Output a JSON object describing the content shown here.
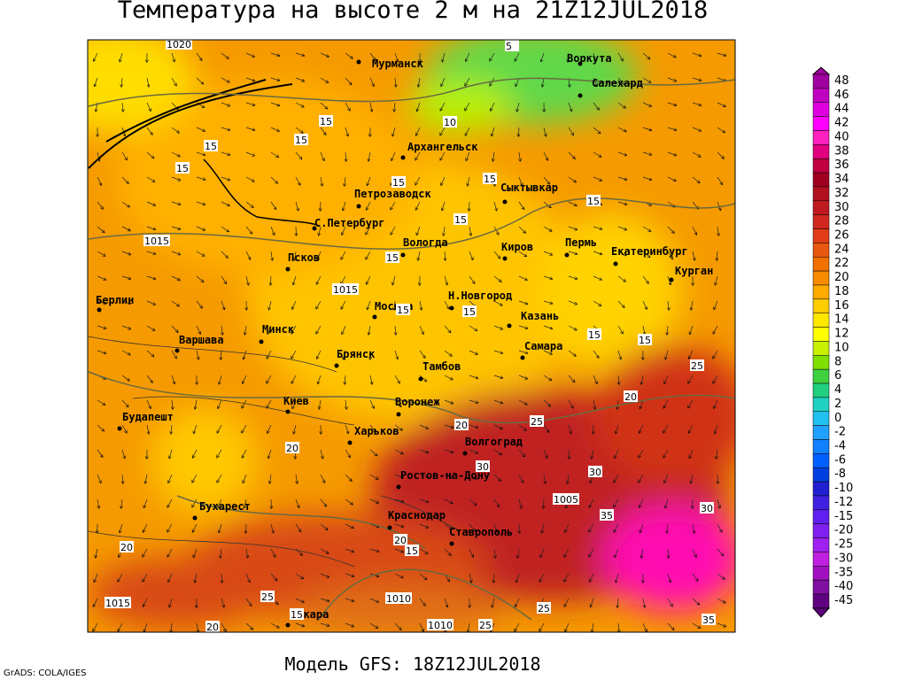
{
  "title": "Температура на высоте 2 м на 21Z12JUL2018",
  "subtitle": "Модель GFS: 18Z12JUL2018",
  "credit": "GrADS: COLA/IGES",
  "cities": [
    "Мурманск",
    "Воркута",
    "Салехард",
    "Архангельск",
    "Петрозаводск",
    "Сыктывкар",
    "С.Петербург",
    "Вологда",
    "Киров",
    "Пермь",
    "Екатеринбург",
    "Курган",
    "Псков",
    "Берлин",
    "Н.Новгород",
    "Москва",
    "Казань",
    "Варшава",
    "Минск",
    "Самара",
    "Брянск",
    "Тамбов",
    "Киев",
    "Воронеж",
    "Будапешт",
    "Харьков",
    "Волгоград",
    "Ростов-на-Дону",
    "Бухарест",
    "Краснодар",
    "Ставрополь",
    "Анкара"
  ],
  "isolines": [
    "1020",
    "5",
    "10",
    "15",
    "15",
    "15",
    "15",
    "15",
    "15",
    "15",
    "1015",
    "1015",
    "15",
    "15",
    "15",
    "15",
    "15",
    "15",
    "25",
    "20",
    "20",
    "20",
    "25",
    "30",
    "30",
    "1005",
    "35",
    "30",
    "25",
    "20",
    "15",
    "1010",
    "1010",
    "25",
    "25",
    "35",
    "1015",
    "20",
    "15",
    "20"
  ],
  "legend": {
    "labels": [
      "48",
      "46",
      "44",
      "42",
      "40",
      "38",
      "36",
      "34",
      "32",
      "30",
      "28",
      "26",
      "24",
      "22",
      "20",
      "18",
      "16",
      "14",
      "12",
      "10",
      "8",
      "6",
      "4",
      "2",
      "0",
      "-2",
      "-4",
      "-6",
      "-8",
      "-10",
      "-12",
      "-15",
      "-20",
      "-25",
      "-30",
      "-35",
      "-40",
      "-45"
    ],
    "colors": [
      "#a000a0",
      "#c000c0",
      "#e000e0",
      "#ff00ff",
      "#ff20c0",
      "#e00080",
      "#c00040",
      "#a00020",
      "#b01020",
      "#c01a20",
      "#d02820",
      "#e03c18",
      "#e85810",
      "#f07000",
      "#f88c00",
      "#ffaa00",
      "#ffcc00",
      "#ffe800",
      "#ffff00",
      "#c8f000",
      "#80e000",
      "#40d040",
      "#20d080",
      "#20d0c0",
      "#20c0f0",
      "#20a0ff",
      "#1080ff",
      "#0060ff",
      "#0040e0",
      "#2020d0",
      "#4020e0",
      "#6020f0",
      "#8020f0",
      "#a020f0",
      "#c020e0",
      "#a010c0",
      "#8010a0",
      "#600080"
    ]
  }
}
